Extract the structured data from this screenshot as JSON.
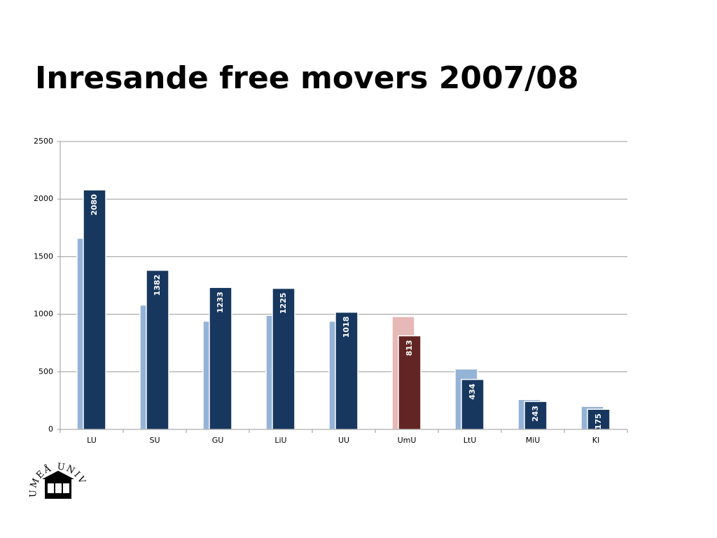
{
  "chart_data": {
    "type": "bar",
    "title": "Inresande free movers 2007/08",
    "categories": [
      "LU",
      "SU",
      "GU",
      "LiU",
      "UU",
      "UmU",
      "LtU",
      "MiU",
      "KI"
    ],
    "series": [
      {
        "color": "#95b3d7",
        "colors": [
          "#95b3d7",
          "#95b3d7",
          "#95b3d7",
          "#95b3d7",
          "#95b3d7",
          "#e6b8b7",
          "#95b3d7",
          "#95b3d7",
          "#95b3d7"
        ],
        "values": [
          1660,
          1080,
          940,
          990,
          940,
          980,
          525,
          260,
          200
        ]
      },
      {
        "color": "#17375e",
        "colors": [
          "#17375e",
          "#17375e",
          "#17375e",
          "#17375e",
          "#17375e",
          "#632523",
          "#17375e",
          "#17375e",
          "#17375e"
        ],
        "values": [
          2080,
          1382,
          1233,
          1225,
          1018,
          813,
          434,
          243,
          175
        ],
        "labels": true
      }
    ],
    "ylim": [
      0,
      2500
    ],
    "yticks": [
      0,
      500,
      1000,
      1500,
      2000,
      2500
    ],
    "grid": true
  },
  "logo": {
    "text": "UMEÅ UNIVERSITET"
  }
}
